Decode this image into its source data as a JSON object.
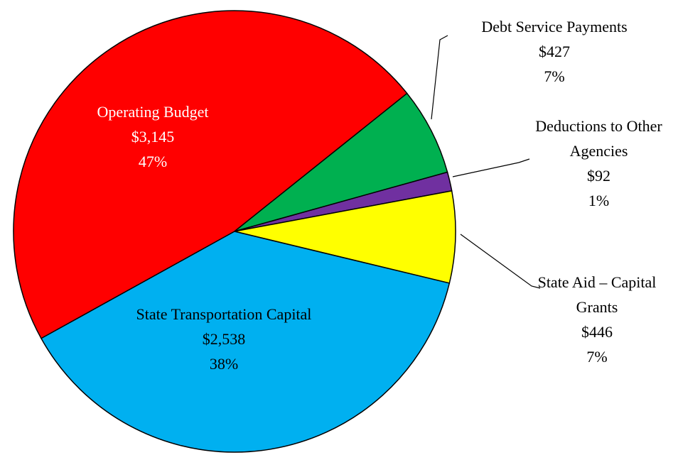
{
  "chart_data": {
    "type": "pie",
    "categories": [
      "Operating Budget",
      "Debt Service Payments",
      "Deductions to Other Agencies",
      "State Aid – Capital Grants",
      "State Transportation Capital"
    ],
    "values": [
      3145,
      427,
      92,
      446,
      2538
    ],
    "value_labels": [
      "$3,145",
      "$427",
      "$92",
      "$446",
      "$2,538"
    ],
    "percent_labels": [
      "47%",
      "7%",
      "1%",
      "7%",
      "38%"
    ],
    "colors": [
      "#ff0000",
      "#00b050",
      "#7030a0",
      "#ffff00",
      "#00b0f0"
    ]
  }
}
